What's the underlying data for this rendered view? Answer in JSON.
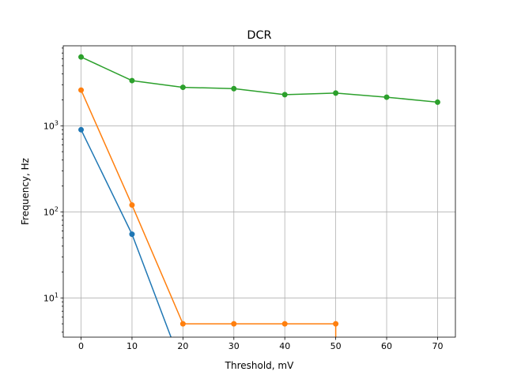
{
  "chart_data": {
    "type": "line",
    "title": "DCR",
    "xlabel": "Threshold, mV",
    "ylabel": "Frequency, Hz",
    "xlim": [
      -3.5,
      73.5
    ],
    "ylim": [
      3.5,
      8500
    ],
    "yscale": "log",
    "grid": true,
    "x_ticks": [
      0,
      10,
      20,
      30,
      40,
      50,
      60,
      70
    ],
    "y_ticks": [
      {
        "value": 10,
        "base": "10",
        "exp": "1"
      },
      {
        "value": 100,
        "base": "10",
        "exp": "2"
      },
      {
        "value": 1000,
        "base": "10",
        "exp": "3"
      }
    ],
    "series": [
      {
        "color": "#1f77b4",
        "x": [
          0,
          10,
          20
        ],
        "y": [
          900,
          55,
          0
        ],
        "markers": [
          true,
          true,
          false
        ]
      },
      {
        "color": "#ff7f0e",
        "x": [
          0,
          10,
          20,
          30,
          40,
          50,
          50
        ],
        "y": [
          2600,
          120,
          5,
          5,
          5,
          5,
          0
        ],
        "markers": [
          true,
          true,
          true,
          true,
          true,
          true,
          false
        ]
      },
      {
        "color": "#2ca02c",
        "x": [
          0,
          10,
          20,
          30,
          40,
          50,
          60,
          70
        ],
        "y": [
          6300,
          3350,
          2800,
          2700,
          2300,
          2400,
          2150,
          1880
        ],
        "markers": [
          true,
          true,
          true,
          true,
          true,
          true,
          true,
          true
        ]
      }
    ]
  }
}
